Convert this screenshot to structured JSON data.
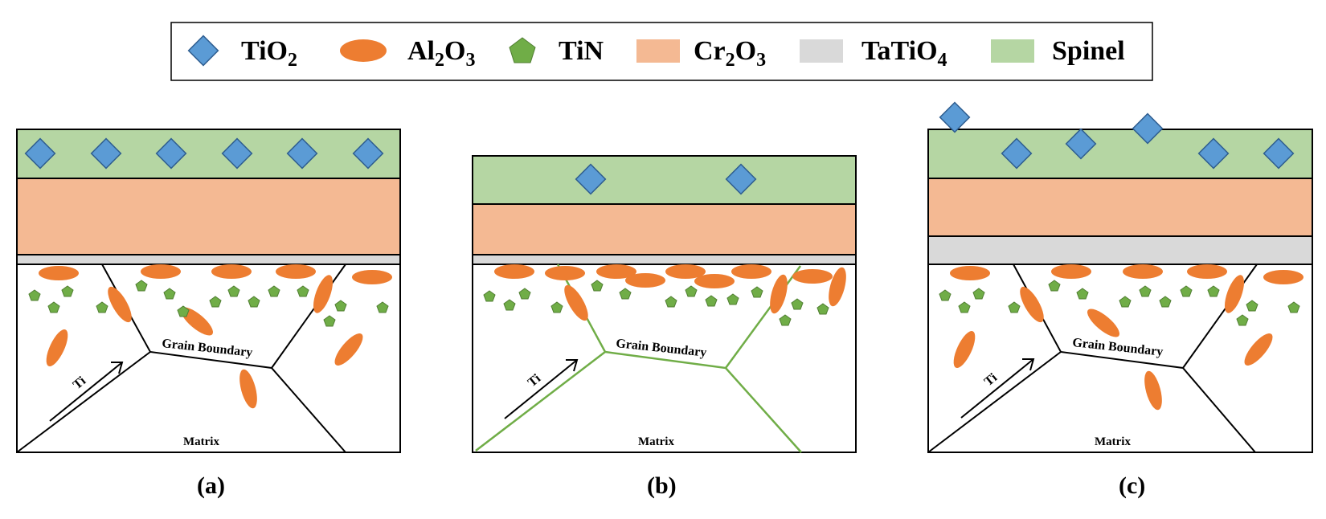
{
  "colors": {
    "tio2": "#5b9bd5",
    "tio2_stroke": "#2e5d8f",
    "al2o3": "#ed7d31",
    "tin": "#70ad47",
    "tin_stroke": "#507e32",
    "cr2o3": "#f4b993",
    "tatio4": "#d9d9d9",
    "spinel": "#b5d6a3",
    "grain_boundary_green": "#70ad47"
  },
  "legend": {
    "items": [
      {
        "id": "tio2",
        "label": "TiO",
        "sub": "2",
        "icon": "diamond-icon"
      },
      {
        "id": "al2o3",
        "label": "Al",
        "sub": "2",
        "label2": "O",
        "sub2": "3",
        "icon": "ellipse-icon"
      },
      {
        "id": "tin",
        "label": "TiN",
        "icon": "pentagon-icon"
      },
      {
        "id": "cr2o3",
        "label": "Cr",
        "sub": "2",
        "label2": "O",
        "sub2": "3",
        "icon": "rect-swatch-icon"
      },
      {
        "id": "tatio4",
        "label": "TaTiO",
        "sub": "4",
        "icon": "rect-swatch-icon"
      },
      {
        "id": "spinel",
        "label": "Spinel",
        "icon": "rect-swatch-icon"
      }
    ]
  },
  "panels": [
    {
      "id": "a",
      "caption": "(a)",
      "grain_boundary_label": "Grain Boundary",
      "matrix_label": "Matrix",
      "arrow_label": "Ti"
    },
    {
      "id": "b",
      "caption": "(b)",
      "grain_boundary_label": "Grain Boundary",
      "matrix_label": "Matrix",
      "arrow_label": "Ti"
    },
    {
      "id": "c",
      "caption": "(c)",
      "grain_boundary_label": "Grain Boundary",
      "matrix_label": "Matrix",
      "arrow_label": "Ti"
    }
  ]
}
